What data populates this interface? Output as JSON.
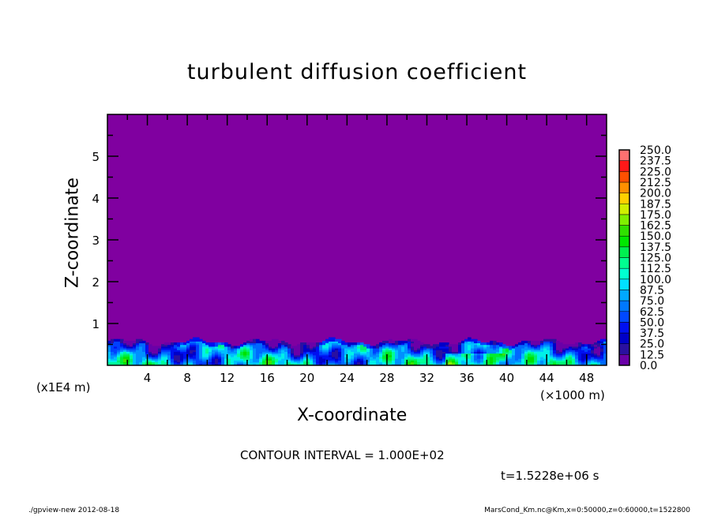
{
  "chart_data": {
    "type": "heatmap",
    "title": "turbulent diffusion coefficient",
    "xlabel": "X-coordinate",
    "ylabel": "Z-coordinate",
    "x_unit": "(×1000 m)",
    "y_unit": "(x1E4 m)",
    "xlim": [
      0,
      50
    ],
    "ylim": [
      0,
      6
    ],
    "x_ticks": [
      4,
      8,
      12,
      16,
      20,
      24,
      28,
      32,
      36,
      40,
      44,
      48
    ],
    "y_ticks": [
      1,
      2,
      3,
      4,
      5
    ],
    "contour_interval": "CONTOUR INTERVAL = 1.000E+02",
    "time_label": "t=1.5228e+06 s",
    "colorbar": {
      "levels": [
        "0.0",
        "12.5",
        "25.0",
        "37.5",
        "50.0",
        "62.5",
        "75.0",
        "87.5",
        "100.0",
        "112.5",
        "125.0",
        "137.5",
        "150.0",
        "162.5",
        "175.0",
        "187.5",
        "200.0",
        "212.5",
        "225.0",
        "237.5",
        "250.0"
      ],
      "colors": [
        "#6a00a8",
        "#2a10a0",
        "#0000c8",
        "#0010f0",
        "#0040ff",
        "#0068ff",
        "#0090ff",
        "#00c0ff",
        "#00f0e8",
        "#00ff98",
        "#00f070",
        "#00ee30",
        "#00e000",
        "#40e000",
        "#90f000",
        "#d8f000",
        "#ffe000",
        "#ffb000",
        "#ff7000",
        "#ff4000",
        "#ff1010",
        "#ff3030",
        "#ff5a5a",
        "#ff8a8a"
      ],
      "background_color": "#8000a0"
    },
    "field_note": ""
  },
  "footer": {
    "left": "./gpview-new  2012-08-18",
    "right": "MarsCond_Km.nc@Km,x=0:50000,z=0:60000,t=1522800"
  }
}
